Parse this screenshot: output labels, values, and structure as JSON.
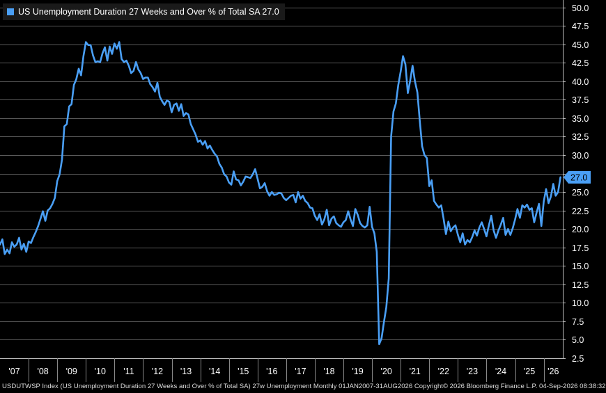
{
  "legend": {
    "label": "US Unemployment Duration 27 Weeks and Over % of Total SA 27.0",
    "swatch_color": "#4a9ff5"
  },
  "footer": {
    "text": "USDUTWSP Index (US Unemployment Duration 27 Weeks and Over % of Total SA) 27w Unemployment Monthly 01JAN2007-31AUG2026 Copyright© 2026 Bloomberg Finance L.P.  04-Sep-2026 08:38:32"
  },
  "chart_data": {
    "type": "line",
    "title": "US Unemployment Duration 27 Weeks and Over % of Total SA 27.0",
    "series_color": "#4a9ff5",
    "background": "#000000",
    "grid": true,
    "last_value_label": "27.0",
    "x_range": [
      "2007-01",
      "2026-08"
    ],
    "ylim": [
      2.5,
      51.0
    ],
    "y_ticks": [
      2.5,
      5.0,
      7.5,
      10.0,
      12.5,
      15.0,
      17.5,
      20.0,
      22.5,
      25.0,
      27.5,
      30.0,
      32.5,
      35.0,
      37.5,
      40.0,
      42.5,
      45.0,
      47.5,
      50.0
    ],
    "x_tick_labels": [
      "'07",
      "'08",
      "'09",
      "'10",
      "'11",
      "'12",
      "'13",
      "'14",
      "'15",
      "'16",
      "'17",
      "'18",
      "'19",
      "'20",
      "'21",
      "'22",
      "'23",
      "'24",
      "'25",
      "'26"
    ],
    "points": [
      [
        "2007-01",
        17.9
      ],
      [
        "2007-02",
        18.6
      ],
      [
        "2007-03",
        16.6
      ],
      [
        "2007-04",
        17.2
      ],
      [
        "2007-05",
        16.7
      ],
      [
        "2007-06",
        18.2
      ],
      [
        "2007-07",
        17.6
      ],
      [
        "2007-08",
        17.9
      ],
      [
        "2007-09",
        18.8
      ],
      [
        "2007-10",
        17.2
      ],
      [
        "2007-11",
        18.0
      ],
      [
        "2007-12",
        16.9
      ],
      [
        "2008-01",
        18.3
      ],
      [
        "2008-02",
        18.1
      ],
      [
        "2008-03",
        18.9
      ],
      [
        "2008-04",
        19.6
      ],
      [
        "2008-05",
        20.4
      ],
      [
        "2008-06",
        21.4
      ],
      [
        "2008-07",
        22.4
      ],
      [
        "2008-08",
        21.1
      ],
      [
        "2008-09",
        22.5
      ],
      [
        "2008-10",
        22.8
      ],
      [
        "2008-11",
        23.4
      ],
      [
        "2008-12",
        24.2
      ],
      [
        "2009-01",
        26.5
      ],
      [
        "2009-02",
        27.4
      ],
      [
        "2009-03",
        29.4
      ],
      [
        "2009-04",
        33.9
      ],
      [
        "2009-05",
        34.2
      ],
      [
        "2009-06",
        36.6
      ],
      [
        "2009-07",
        36.9
      ],
      [
        "2009-08",
        39.5
      ],
      [
        "2009-09",
        40.3
      ],
      [
        "2009-10",
        41.7
      ],
      [
        "2009-11",
        40.8
      ],
      [
        "2009-12",
        43.4
      ],
      [
        "2010-01",
        45.3
      ],
      [
        "2010-02",
        44.9
      ],
      [
        "2010-03",
        44.9
      ],
      [
        "2010-04",
        43.5
      ],
      [
        "2010-05",
        42.6
      ],
      [
        "2010-06",
        42.7
      ],
      [
        "2010-07",
        42.6
      ],
      [
        "2010-08",
        43.8
      ],
      [
        "2010-09",
        44.6
      ],
      [
        "2010-10",
        42.8
      ],
      [
        "2010-11",
        44.7
      ],
      [
        "2010-12",
        43.7
      ],
      [
        "2011-01",
        45.1
      ],
      [
        "2011-02",
        44.4
      ],
      [
        "2011-03",
        45.3
      ],
      [
        "2011-04",
        43.0
      ],
      [
        "2011-05",
        42.6
      ],
      [
        "2011-06",
        42.8
      ],
      [
        "2011-07",
        42.1
      ],
      [
        "2011-08",
        41.1
      ],
      [
        "2011-09",
        41.4
      ],
      [
        "2011-10",
        42.6
      ],
      [
        "2011-11",
        41.6
      ],
      [
        "2011-12",
        41.1
      ],
      [
        "2012-01",
        40.3
      ],
      [
        "2012-02",
        40.5
      ],
      [
        "2012-03",
        40.5
      ],
      [
        "2012-04",
        39.6
      ],
      [
        "2012-05",
        39.2
      ],
      [
        "2012-06",
        38.6
      ],
      [
        "2012-07",
        39.8
      ],
      [
        "2012-08",
        37.9
      ],
      [
        "2012-09",
        37.3
      ],
      [
        "2012-10",
        36.8
      ],
      [
        "2012-11",
        37.4
      ],
      [
        "2012-12",
        37.2
      ],
      [
        "2013-01",
        35.8
      ],
      [
        "2013-02",
        36.8
      ],
      [
        "2013-03",
        37.0
      ],
      [
        "2013-04",
        36.0
      ],
      [
        "2013-05",
        36.9
      ],
      [
        "2013-06",
        35.3
      ],
      [
        "2013-07",
        35.7
      ],
      [
        "2013-08",
        35.5
      ],
      [
        "2013-09",
        34.2
      ],
      [
        "2013-10",
        33.5
      ],
      [
        "2013-11",
        32.8
      ],
      [
        "2013-12",
        31.8
      ],
      [
        "2014-01",
        32.0
      ],
      [
        "2014-02",
        31.4
      ],
      [
        "2014-03",
        31.9
      ],
      [
        "2014-04",
        30.9
      ],
      [
        "2014-05",
        31.3
      ],
      [
        "2014-06",
        30.7
      ],
      [
        "2014-07",
        30.2
      ],
      [
        "2014-08",
        29.8
      ],
      [
        "2014-09",
        28.8
      ],
      [
        "2014-10",
        28.3
      ],
      [
        "2014-11",
        27.4
      ],
      [
        "2014-12",
        27.1
      ],
      [
        "2015-01",
        26.3
      ],
      [
        "2015-02",
        26.0
      ],
      [
        "2015-03",
        27.8
      ],
      [
        "2015-04",
        26.7
      ],
      [
        "2015-05",
        26.6
      ],
      [
        "2015-06",
        25.9
      ],
      [
        "2015-07",
        26.4
      ],
      [
        "2015-08",
        27.1
      ],
      [
        "2015-09",
        27.0
      ],
      [
        "2015-10",
        26.9
      ],
      [
        "2015-11",
        27.4
      ],
      [
        "2015-12",
        28.1
      ],
      [
        "2016-01",
        26.8
      ],
      [
        "2016-02",
        25.5
      ],
      [
        "2016-03",
        25.7
      ],
      [
        "2016-04",
        26.2
      ],
      [
        "2016-05",
        25.1
      ],
      [
        "2016-06",
        24.5
      ],
      [
        "2016-07",
        25.0
      ],
      [
        "2016-08",
        24.6
      ],
      [
        "2016-09",
        24.7
      ],
      [
        "2016-10",
        24.9
      ],
      [
        "2016-11",
        24.8
      ],
      [
        "2016-12",
        24.2
      ],
      [
        "2017-01",
        23.9
      ],
      [
        "2017-02",
        24.2
      ],
      [
        "2017-03",
        24.5
      ],
      [
        "2017-04",
        24.6
      ],
      [
        "2017-05",
        23.6
      ],
      [
        "2017-06",
        25.0
      ],
      [
        "2017-07",
        24.1
      ],
      [
        "2017-08",
        24.5
      ],
      [
        "2017-09",
        23.8
      ],
      [
        "2017-10",
        23.5
      ],
      [
        "2017-11",
        22.9
      ],
      [
        "2017-12",
        22.8
      ],
      [
        "2018-01",
        21.8
      ],
      [
        "2018-02",
        21.2
      ],
      [
        "2018-03",
        22.0
      ],
      [
        "2018-04",
        20.6
      ],
      [
        "2018-05",
        21.3
      ],
      [
        "2018-06",
        22.6
      ],
      [
        "2018-07",
        20.5
      ],
      [
        "2018-08",
        21.4
      ],
      [
        "2018-09",
        21.7
      ],
      [
        "2018-10",
        20.8
      ],
      [
        "2018-11",
        20.5
      ],
      [
        "2018-12",
        20.3
      ],
      [
        "2019-01",
        20.9
      ],
      [
        "2019-02",
        21.2
      ],
      [
        "2019-03",
        22.4
      ],
      [
        "2019-04",
        21.3
      ],
      [
        "2019-05",
        20.4
      ],
      [
        "2019-06",
        22.7
      ],
      [
        "2019-07",
        21.9
      ],
      [
        "2019-08",
        20.8
      ],
      [
        "2019-09",
        20.4
      ],
      [
        "2019-10",
        20.2
      ],
      [
        "2019-11",
        20.5
      ],
      [
        "2019-12",
        23.0
      ],
      [
        "2020-01",
        20.3
      ],
      [
        "2020-02",
        19.4
      ],
      [
        "2020-03",
        16.9
      ],
      [
        "2020-04",
        4.4
      ],
      [
        "2020-05",
        5.2
      ],
      [
        "2020-06",
        7.4
      ],
      [
        "2020-07",
        9.4
      ],
      [
        "2020-08",
        13.3
      ],
      [
        "2020-09",
        32.5
      ],
      [
        "2020-10",
        35.9
      ],
      [
        "2020-11",
        37.0
      ],
      [
        "2020-12",
        39.5
      ],
      [
        "2021-01",
        41.3
      ],
      [
        "2021-02",
        43.4
      ],
      [
        "2021-03",
        42.3
      ],
      [
        "2021-04",
        38.4
      ],
      [
        "2021-05",
        40.1
      ],
      [
        "2021-06",
        42.1
      ],
      [
        "2021-07",
        40.0
      ],
      [
        "2021-08",
        38.5
      ],
      [
        "2021-09",
        34.7
      ],
      [
        "2021-10",
        31.2
      ],
      [
        "2021-11",
        30.0
      ],
      [
        "2021-12",
        29.6
      ],
      [
        "2022-01",
        25.8
      ],
      [
        "2022-02",
        26.6
      ],
      [
        "2022-03",
        23.8
      ],
      [
        "2022-04",
        23.3
      ],
      [
        "2022-05",
        22.9
      ],
      [
        "2022-06",
        23.2
      ],
      [
        "2022-07",
        21.4
      ],
      [
        "2022-08",
        19.3
      ],
      [
        "2022-09",
        21.0
      ],
      [
        "2022-10",
        19.7
      ],
      [
        "2022-11",
        20.2
      ],
      [
        "2022-12",
        20.5
      ],
      [
        "2023-01",
        19.2
      ],
      [
        "2023-02",
        18.2
      ],
      [
        "2023-03",
        19.4
      ],
      [
        "2023-04",
        17.9
      ],
      [
        "2023-05",
        18.5
      ],
      [
        "2023-06",
        18.2
      ],
      [
        "2023-07",
        18.9
      ],
      [
        "2023-08",
        19.8
      ],
      [
        "2023-09",
        19.1
      ],
      [
        "2023-10",
        20.2
      ],
      [
        "2023-11",
        20.9
      ],
      [
        "2023-12",
        20.0
      ],
      [
        "2024-01",
        19.0
      ],
      [
        "2024-02",
        20.5
      ],
      [
        "2024-03",
        21.8
      ],
      [
        "2024-04",
        19.8
      ],
      [
        "2024-05",
        18.8
      ],
      [
        "2024-06",
        19.8
      ],
      [
        "2024-07",
        20.6
      ],
      [
        "2024-08",
        21.5
      ],
      [
        "2024-09",
        19.2
      ],
      [
        "2024-10",
        20.0
      ],
      [
        "2024-11",
        19.2
      ],
      [
        "2024-12",
        20.1
      ],
      [
        "2025-01",
        21.3
      ],
      [
        "2025-02",
        22.7
      ],
      [
        "2025-03",
        21.5
      ],
      [
        "2025-04",
        23.2
      ],
      [
        "2025-05",
        22.9
      ],
      [
        "2025-06",
        23.3
      ],
      [
        "2025-07",
        22.6
      ],
      [
        "2025-08",
        22.8
      ],
      [
        "2025-09",
        20.9
      ],
      [
        "2025-10",
        22.2
      ],
      [
        "2025-11",
        23.4
      ],
      [
        "2025-12",
        20.4
      ],
      [
        "2026-01",
        23.7
      ],
      [
        "2026-02",
        25.4
      ],
      [
        "2026-03",
        23.5
      ],
      [
        "2026-04",
        24.4
      ],
      [
        "2026-05",
        26.1
      ],
      [
        "2026-06",
        24.5
      ],
      [
        "2026-07",
        25.0
      ],
      [
        "2026-08",
        27.0
      ]
    ]
  }
}
